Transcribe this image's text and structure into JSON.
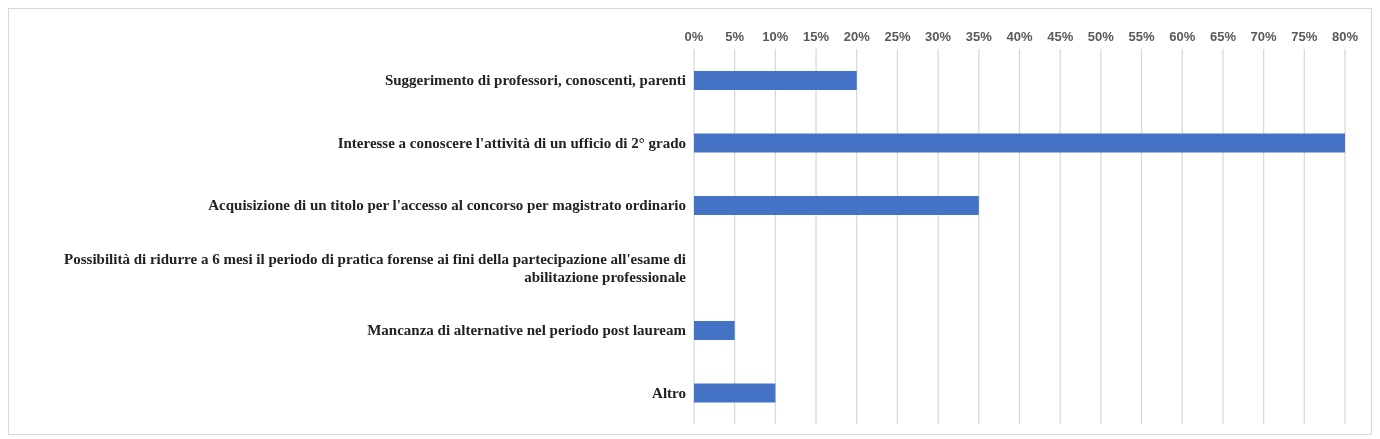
{
  "chart_data": {
    "type": "bar",
    "orientation": "horizontal",
    "categories": [
      "Suggerimento di professori, conoscenti, parenti",
      "Interesse a conoscere l'attività di un ufficio di 2° grado",
      "Acquisizione di un titolo per l'accesso al concorso per magistrato ordinario",
      "Possibilità di ridurre a 6 mesi il periodo di pratica forense ai fini della partecipazione all'esame di abilitazione professionale",
      "Mancanza di alternative nel periodo post lauream",
      "Altro"
    ],
    "values": [
      20,
      80,
      35,
      0,
      5,
      10
    ],
    "color": "#4472c4",
    "xlim": [
      0,
      80
    ],
    "xticks": [
      {
        "value": 0,
        "label": "0%"
      },
      {
        "value": 5,
        "label": "5%"
      },
      {
        "value": 10,
        "label": "10%"
      },
      {
        "value": 15,
        "label": "15%"
      },
      {
        "value": 20,
        "label": "20%"
      },
      {
        "value": 25,
        "label": "25%"
      },
      {
        "value": 30,
        "label": "30%"
      },
      {
        "value": 35,
        "label": "35%"
      },
      {
        "value": 40,
        "label": "40%"
      },
      {
        "value": 45,
        "label": "45%"
      },
      {
        "value": 50,
        "label": "50%"
      },
      {
        "value": 55,
        "label": "55%"
      },
      {
        "value": 60,
        "label": "60%"
      },
      {
        "value": 65,
        "label": "65%"
      },
      {
        "value": 70,
        "label": "70%"
      },
      {
        "value": 75,
        "label": "75%"
      },
      {
        "value": 80,
        "label": "80%"
      }
    ],
    "grid": "x"
  }
}
